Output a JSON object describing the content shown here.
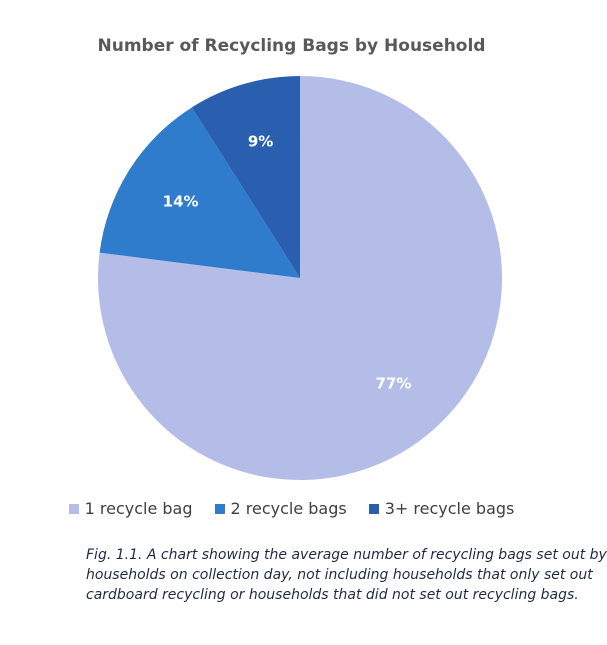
{
  "chart_data": {
    "type": "pie",
    "title": "Number of Recycling Bags by Household",
    "categories": [
      "1 recycle bag",
      "2 recycle bags",
      "3+ recycle bags"
    ],
    "values": [
      77,
      14,
      9
    ],
    "labels": [
      "77%",
      "14%",
      "9%"
    ],
    "colors": [
      "#b4bde8",
      "#2f7ccd",
      "#2a5fb0"
    ],
    "legend_position": "bottom"
  },
  "caption": {
    "lines": [
      "Fig. 1.1. A chart showing the average number of recycling bags set out by",
      "households on collection day, not including households that only set out",
      "cardboard recycling or households that did not set out recycling bags."
    ]
  }
}
